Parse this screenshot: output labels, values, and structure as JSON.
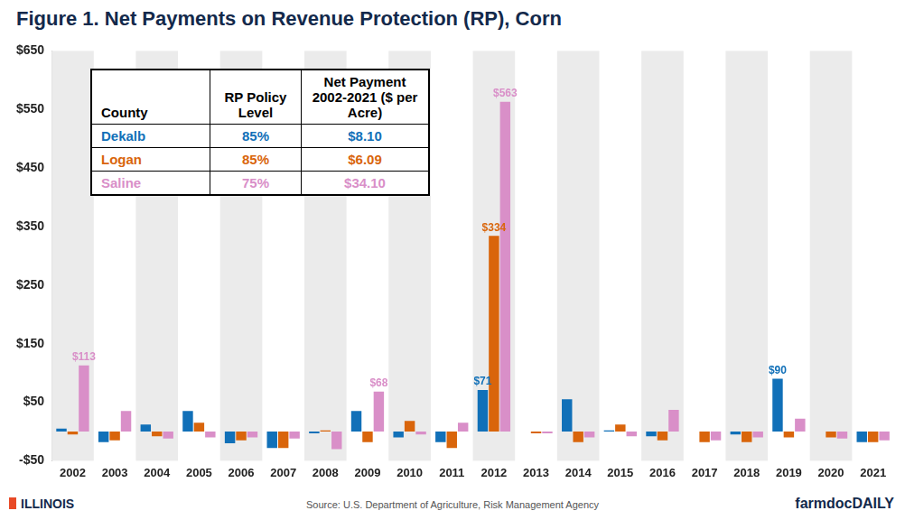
{
  "chart_data": {
    "type": "bar",
    "title": "Figure 1. Net Payments on Revenue Protection (RP), Corn",
    "categories": [
      "2002",
      "2003",
      "2004",
      "2005",
      "2006",
      "2007",
      "2008",
      "2009",
      "2010",
      "2011",
      "2012",
      "2013",
      "2014",
      "2015",
      "2016",
      "2017",
      "2018",
      "2019",
      "2020",
      "2021"
    ],
    "series": [
      {
        "name": "Dekalb",
        "color": "#1170b8",
        "values": [
          5,
          -18,
          12,
          35,
          -20,
          -28,
          -3,
          35,
          -10,
          -18,
          71,
          0,
          55,
          2,
          -8,
          0,
          -5,
          90,
          0,
          -18
        ],
        "value_labels": [
          null,
          null,
          null,
          null,
          null,
          null,
          null,
          null,
          null,
          null,
          "$71",
          null,
          null,
          null,
          null,
          null,
          null,
          "$90",
          null,
          null
        ]
      },
      {
        "name": "Logan",
        "color": "#d9650b",
        "values": [
          -5,
          -15,
          -8,
          15,
          -15,
          -28,
          2,
          -18,
          18,
          -28,
          334,
          -3,
          -18,
          12,
          -15,
          -18,
          -18,
          -10,
          -10,
          -18
        ],
        "value_labels": [
          null,
          null,
          null,
          null,
          null,
          null,
          null,
          null,
          null,
          null,
          "$334",
          null,
          null,
          null,
          null,
          null,
          null,
          null,
          null,
          null
        ]
      },
      {
        "name": "Saline",
        "color": "#d98fc8",
        "values": [
          113,
          35,
          -12,
          -10,
          -10,
          -12,
          -30,
          68,
          -5,
          15,
          563,
          -3,
          -10,
          -8,
          37,
          -15,
          -10,
          22,
          -12,
          -15
        ],
        "value_labels": [
          "$113",
          null,
          null,
          null,
          null,
          null,
          null,
          "$68",
          null,
          null,
          "$563",
          null,
          null,
          null,
          null,
          null,
          null,
          null,
          null,
          null
        ]
      }
    ],
    "ylim": [
      -50,
      650
    ],
    "yticks": [
      {
        "value": -50,
        "label": "-$50"
      },
      {
        "value": 50,
        "label": "$50"
      },
      {
        "value": 150,
        "label": "$150"
      },
      {
        "value": 250,
        "label": "$250"
      },
      {
        "value": 350,
        "label": "$350"
      },
      {
        "value": 450,
        "label": "$450"
      },
      {
        "value": 550,
        "label": "$550"
      },
      {
        "value": 650,
        "label": "$650"
      }
    ],
    "grid": false,
    "data_labels": true
  },
  "table": {
    "header": [
      "County",
      "RP Policy Level",
      "Net Payment 2002-2021 ($ per Acre)"
    ],
    "rows": [
      [
        "Dekalb",
        "85%",
        "$8.10"
      ],
      [
        "Logan",
        "85%",
        "$6.09"
      ],
      [
        "Saline",
        "75%",
        "$34.10"
      ]
    ]
  },
  "footer": {
    "left": "ILLINOIS",
    "source": "Source: U.S. Department of Agriculture, Risk Management Agency",
    "right": "farmdocDAILY"
  }
}
